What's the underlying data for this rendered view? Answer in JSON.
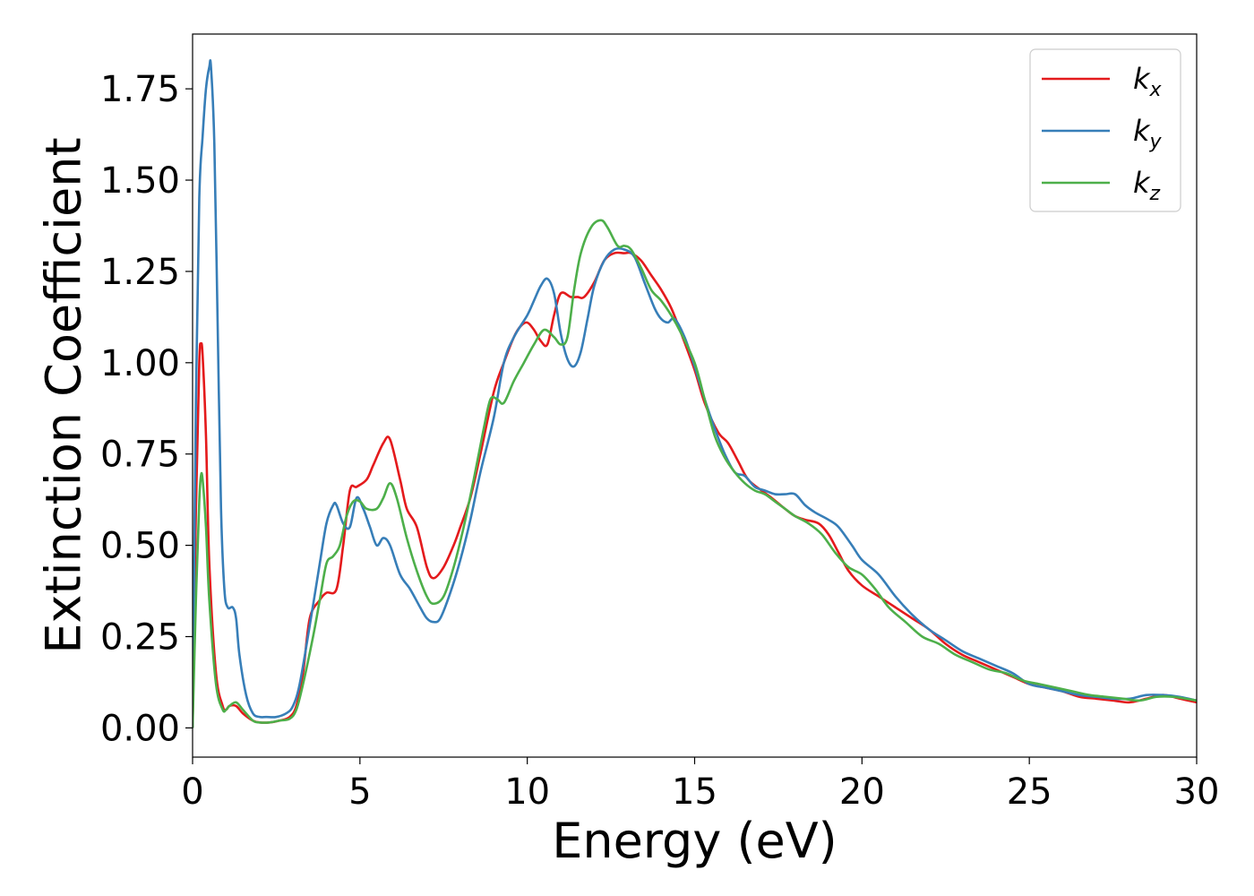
{
  "chart_data": {
    "type": "line",
    "title": "",
    "xlabel": "Energy (eV)",
    "ylabel": "Extinction Coefficient",
    "xlim": [
      0,
      30
    ],
    "ylim": [
      -0.08,
      1.9
    ],
    "xticks": [
      0,
      5,
      10,
      15,
      20,
      25,
      30
    ],
    "xtick_labels": [
      "0",
      "5",
      "10",
      "15",
      "20",
      "25",
      "30"
    ],
    "yticks": [
      0,
      0.25,
      0.5,
      0.75,
      1.0,
      1.25,
      1.5,
      1.75
    ],
    "ytick_labels": [
      "0.00",
      "0.25",
      "0.50",
      "0.75",
      "1.00",
      "1.25",
      "1.50",
      "1.75"
    ],
    "grid": false,
    "legend_position": "top-right",
    "series": [
      {
        "name": "k",
        "subscript": "x",
        "color": "#e41a1c",
        "x": [
          0,
          0.1,
          0.2,
          0.25,
          0.3,
          0.4,
          0.5,
          0.7,
          0.9,
          1.0,
          1.1,
          1.3,
          1.5,
          1.8,
          2.0,
          2.3,
          2.6,
          2.9,
          3.1,
          3.3,
          3.5,
          3.8,
          4.0,
          4.3,
          4.5,
          4.7,
          4.9,
          5.2,
          5.4,
          5.7,
          5.9,
          6.2,
          6.4,
          6.7,
          7.0,
          7.2,
          7.5,
          7.8,
          8.0,
          8.3,
          8.6,
          9.0,
          9.3,
          9.6,
          9.8,
          10.0,
          10.2,
          10.4,
          10.6,
          10.8,
          11.0,
          11.3,
          11.5,
          11.7,
          12.0,
          12.3,
          12.6,
          12.9,
          13.1,
          13.4,
          13.7,
          14.0,
          14.3,
          14.6,
          15.0,
          15.3,
          15.7,
          16.0,
          16.3,
          16.6,
          17.0,
          17.3,
          17.7,
          18.0,
          18.3,
          18.7,
          19.0,
          19.3,
          19.6,
          20.0,
          20.5,
          21.0,
          21.5,
          22.0,
          22.5,
          23.0,
          23.5,
          24.0,
          24.5,
          25.0,
          25.5,
          26.0,
          26.5,
          27.0,
          27.5,
          28.0,
          28.5,
          29.0,
          29.5,
          30.0
        ],
        "y": [
          0.0,
          0.6,
          1.0,
          1.05,
          1.02,
          0.8,
          0.45,
          0.15,
          0.06,
          0.05,
          0.06,
          0.06,
          0.04,
          0.02,
          0.015,
          0.015,
          0.02,
          0.03,
          0.06,
          0.15,
          0.3,
          0.35,
          0.37,
          0.38,
          0.5,
          0.65,
          0.66,
          0.68,
          0.72,
          0.78,
          0.79,
          0.68,
          0.6,
          0.55,
          0.44,
          0.41,
          0.44,
          0.5,
          0.55,
          0.63,
          0.75,
          0.92,
          1.0,
          1.07,
          1.1,
          1.11,
          1.09,
          1.06,
          1.05,
          1.13,
          1.19,
          1.18,
          1.18,
          1.18,
          1.22,
          1.28,
          1.3,
          1.3,
          1.3,
          1.28,
          1.24,
          1.2,
          1.15,
          1.08,
          0.98,
          0.89,
          0.81,
          0.78,
          0.73,
          0.68,
          0.65,
          0.63,
          0.6,
          0.58,
          0.57,
          0.56,
          0.53,
          0.48,
          0.43,
          0.39,
          0.36,
          0.33,
          0.3,
          0.27,
          0.23,
          0.2,
          0.18,
          0.16,
          0.14,
          0.12,
          0.11,
          0.1,
          0.085,
          0.08,
          0.075,
          0.07,
          0.08,
          0.09,
          0.08,
          0.07
        ]
      },
      {
        "name": "k",
        "subscript": "y",
        "color": "#377eb8",
        "x": [
          0,
          0.1,
          0.2,
          0.3,
          0.4,
          0.5,
          0.55,
          0.65,
          0.75,
          0.85,
          0.95,
          1.05,
          1.2,
          1.3,
          1.4,
          1.6,
          1.8,
          2.0,
          2.2,
          2.5,
          2.8,
          3.0,
          3.2,
          3.5,
          3.8,
          4.0,
          4.2,
          4.3,
          4.5,
          4.7,
          4.9,
          5.1,
          5.3,
          5.5,
          5.7,
          5.9,
          6.2,
          6.5,
          6.8,
          7.0,
          7.2,
          7.4,
          7.7,
          8.0,
          8.3,
          8.6,
          9.0,
          9.3,
          9.6,
          10.0,
          10.2,
          10.4,
          10.6,
          10.8,
          11.0,
          11.2,
          11.4,
          11.6,
          11.8,
          12.0,
          12.3,
          12.6,
          12.9,
          13.2,
          13.5,
          13.8,
          14.0,
          14.2,
          14.4,
          14.7,
          15.0,
          15.3,
          15.6,
          15.9,
          16.2,
          16.5,
          16.8,
          17.1,
          17.4,
          17.7,
          18.0,
          18.3,
          18.6,
          19.0,
          19.3,
          19.7,
          20.0,
          20.5,
          21.0,
          21.5,
          22.0,
          22.5,
          23.0,
          23.5,
          24.0,
          24.5,
          25.0,
          25.5,
          26.0,
          26.5,
          27.0,
          27.5,
          28.0,
          28.5,
          29.0,
          29.5,
          30.0
        ],
        "y": [
          0.0,
          0.9,
          1.45,
          1.62,
          1.75,
          1.81,
          1.81,
          1.6,
          1.1,
          0.6,
          0.38,
          0.33,
          0.33,
          0.3,
          0.2,
          0.09,
          0.04,
          0.03,
          0.03,
          0.03,
          0.04,
          0.06,
          0.12,
          0.28,
          0.45,
          0.56,
          0.61,
          0.61,
          0.56,
          0.55,
          0.63,
          0.6,
          0.55,
          0.5,
          0.52,
          0.5,
          0.42,
          0.38,
          0.33,
          0.3,
          0.29,
          0.3,
          0.37,
          0.46,
          0.57,
          0.7,
          0.85,
          1.0,
          1.07,
          1.13,
          1.17,
          1.21,
          1.23,
          1.19,
          1.08,
          1.01,
          0.99,
          1.03,
          1.12,
          1.21,
          1.28,
          1.31,
          1.31,
          1.29,
          1.22,
          1.15,
          1.12,
          1.11,
          1.12,
          1.07,
          0.99,
          0.9,
          0.82,
          0.75,
          0.7,
          0.69,
          0.66,
          0.65,
          0.64,
          0.64,
          0.64,
          0.61,
          0.59,
          0.57,
          0.55,
          0.5,
          0.46,
          0.42,
          0.36,
          0.31,
          0.27,
          0.24,
          0.21,
          0.19,
          0.17,
          0.15,
          0.12,
          0.11,
          0.1,
          0.09,
          0.085,
          0.08,
          0.08,
          0.09,
          0.09,
          0.085,
          0.075
        ]
      },
      {
        "name": "k",
        "subscript": "z",
        "color": "#4daf4a",
        "x": [
          0,
          0.1,
          0.2,
          0.25,
          0.3,
          0.4,
          0.5,
          0.7,
          0.9,
          1.0,
          1.1,
          1.3,
          1.5,
          1.8,
          2.0,
          2.3,
          2.6,
          2.9,
          3.1,
          3.3,
          3.6,
          3.8,
          4.0,
          4.2,
          4.4,
          4.6,
          4.8,
          5.0,
          5.2,
          5.5,
          5.7,
          5.9,
          6.1,
          6.4,
          6.7,
          7.0,
          7.2,
          7.5,
          7.8,
          8.1,
          8.4,
          8.7,
          8.9,
          9.1,
          9.3,
          9.6,
          9.9,
          10.2,
          10.5,
          10.8,
          11.0,
          11.2,
          11.4,
          11.6,
          11.9,
          12.2,
          12.4,
          12.7,
          12.9,
          13.1,
          13.4,
          13.7,
          14.0,
          14.3,
          14.6,
          15.0,
          15.3,
          15.6,
          15.9,
          16.2,
          16.5,
          16.8,
          17.1,
          17.4,
          17.7,
          18.0,
          18.4,
          18.8,
          19.2,
          19.6,
          20.0,
          20.4,
          20.8,
          21.3,
          21.8,
          22.3,
          22.8,
          23.3,
          23.8,
          24.3,
          24.8,
          25.3,
          25.8,
          26.3,
          26.8,
          27.3,
          27.8,
          28.3,
          28.8,
          29.3,
          30.0
        ],
        "y": [
          0.0,
          0.35,
          0.62,
          0.69,
          0.68,
          0.55,
          0.35,
          0.12,
          0.05,
          0.05,
          0.06,
          0.07,
          0.05,
          0.02,
          0.015,
          0.015,
          0.02,
          0.025,
          0.05,
          0.12,
          0.25,
          0.35,
          0.45,
          0.47,
          0.5,
          0.58,
          0.62,
          0.62,
          0.6,
          0.6,
          0.63,
          0.67,
          0.63,
          0.52,
          0.43,
          0.36,
          0.34,
          0.36,
          0.44,
          0.55,
          0.68,
          0.82,
          0.9,
          0.9,
          0.89,
          0.95,
          1.0,
          1.05,
          1.09,
          1.07,
          1.05,
          1.07,
          1.2,
          1.3,
          1.37,
          1.39,
          1.37,
          1.32,
          1.32,
          1.31,
          1.26,
          1.2,
          1.17,
          1.13,
          1.08,
          1.0,
          0.9,
          0.8,
          0.74,
          0.7,
          0.67,
          0.65,
          0.64,
          0.62,
          0.6,
          0.58,
          0.56,
          0.53,
          0.48,
          0.44,
          0.42,
          0.38,
          0.33,
          0.29,
          0.25,
          0.23,
          0.2,
          0.18,
          0.16,
          0.15,
          0.13,
          0.12,
          0.11,
          0.1,
          0.09,
          0.085,
          0.08,
          0.075,
          0.085,
          0.085,
          0.075
        ]
      }
    ]
  }
}
